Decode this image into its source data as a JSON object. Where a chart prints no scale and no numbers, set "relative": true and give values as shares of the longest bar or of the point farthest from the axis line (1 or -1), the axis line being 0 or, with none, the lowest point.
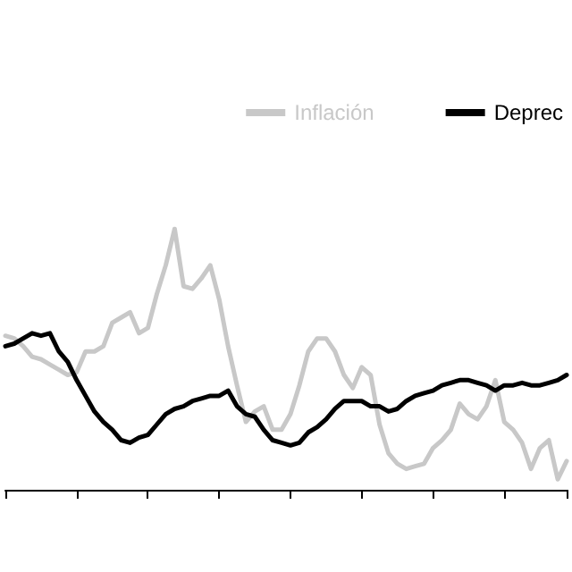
{
  "chart_data": {
    "type": "line",
    "relative": true,
    "legend": "top right",
    "grid": false,
    "marker": "none",
    "line_style": "solid",
    "categories": [
      null,
      null,
      null,
      null,
      null,
      null,
      null,
      null,
      null,
      null,
      null,
      null,
      null,
      null,
      null,
      null,
      null,
      null,
      null,
      null,
      null,
      null,
      null,
      null,
      null,
      null,
      null,
      null,
      null,
      null,
      null,
      null,
      null,
      null,
      null,
      null,
      null,
      null,
      null,
      null,
      null,
      null,
      null,
      null,
      null,
      null,
      null,
      null,
      null,
      null,
      null,
      null,
      null,
      null,
      null,
      null,
      null,
      null,
      null,
      null,
      null,
      null,
      null,
      null
    ],
    "series": [
      {
        "name": "Inflación",
        "color": "#c8c8c8",
        "values": [
          0.59,
          0.58,
          0.55,
          0.51,
          0.5,
          0.48,
          0.46,
          0.44,
          0.45,
          0.53,
          0.53,
          0.55,
          0.64,
          0.66,
          0.68,
          0.6,
          0.62,
          0.75,
          0.86,
          1.0,
          0.78,
          0.77,
          0.81,
          0.86,
          0.73,
          0.55,
          0.4,
          0.26,
          0.3,
          0.32,
          0.23,
          0.23,
          0.29,
          0.4,
          0.53,
          0.58,
          0.58,
          0.53,
          0.44,
          0.39,
          0.47,
          0.44,
          0.25,
          0.14,
          0.1,
          0.08,
          0.09,
          0.1,
          0.16,
          0.19,
          0.23,
          0.33,
          0.29,
          0.27,
          0.32,
          0.42,
          0.26,
          0.23,
          0.18,
          0.08,
          0.16,
          0.19,
          0.04,
          0.11
        ]
      },
      {
        "name": "Deprec",
        "color": "#000000",
        "values": [
          0.55,
          0.56,
          0.58,
          0.6,
          0.59,
          0.6,
          0.53,
          0.49,
          0.42,
          0.36,
          0.3,
          0.26,
          0.23,
          0.19,
          0.18,
          0.2,
          0.21,
          0.25,
          0.29,
          0.31,
          0.32,
          0.34,
          0.35,
          0.36,
          0.36,
          0.38,
          0.32,
          0.29,
          0.28,
          0.23,
          0.19,
          0.18,
          0.17,
          0.18,
          0.22,
          0.24,
          0.27,
          0.31,
          0.34,
          0.34,
          0.34,
          0.32,
          0.32,
          0.3,
          0.31,
          0.34,
          0.36,
          0.37,
          0.38,
          0.4,
          0.41,
          0.42,
          0.42,
          0.41,
          0.4,
          0.38,
          0.4,
          0.4,
          0.41,
          0.4,
          0.4,
          0.41,
          0.42,
          0.44
        ]
      }
    ]
  }
}
